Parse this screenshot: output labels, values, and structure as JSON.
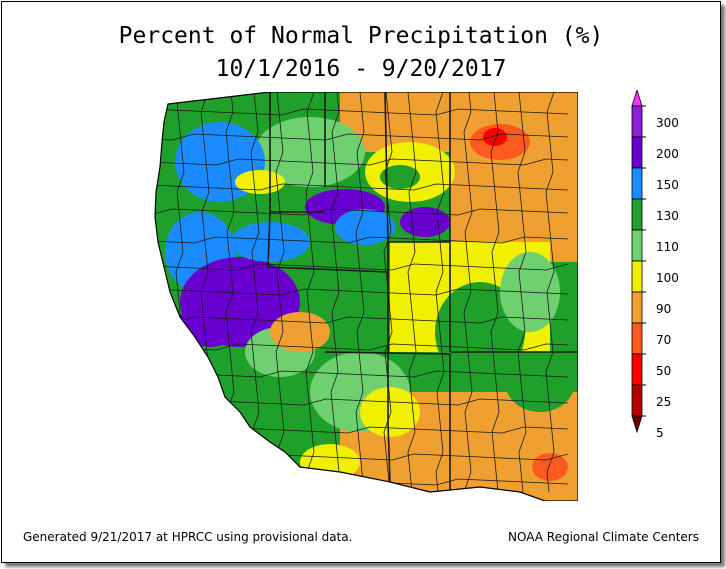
{
  "title": {
    "line1": "Percent of Normal Precipitation (%)",
    "line2": "10/1/2016 - 9/20/2017"
  },
  "legend": {
    "labels": [
      "300",
      "200",
      "150",
      "130",
      "110",
      "100",
      "90",
      "70",
      "50",
      "25",
      "5"
    ],
    "colors": [
      "#ff33ff",
      "#8a20d0",
      "#6a00d0",
      "#1a8cff",
      "#1fa02a",
      "#6fd06f",
      "#f0f000",
      "#f0a030",
      "#ff5a1e",
      "#ff0000",
      "#b40000",
      "#6e0000"
    ]
  },
  "footer": {
    "generated": "Generated 9/21/2017 at HPRCC using provisional data.",
    "credit": "NOAA Regional Climate Centers"
  }
}
